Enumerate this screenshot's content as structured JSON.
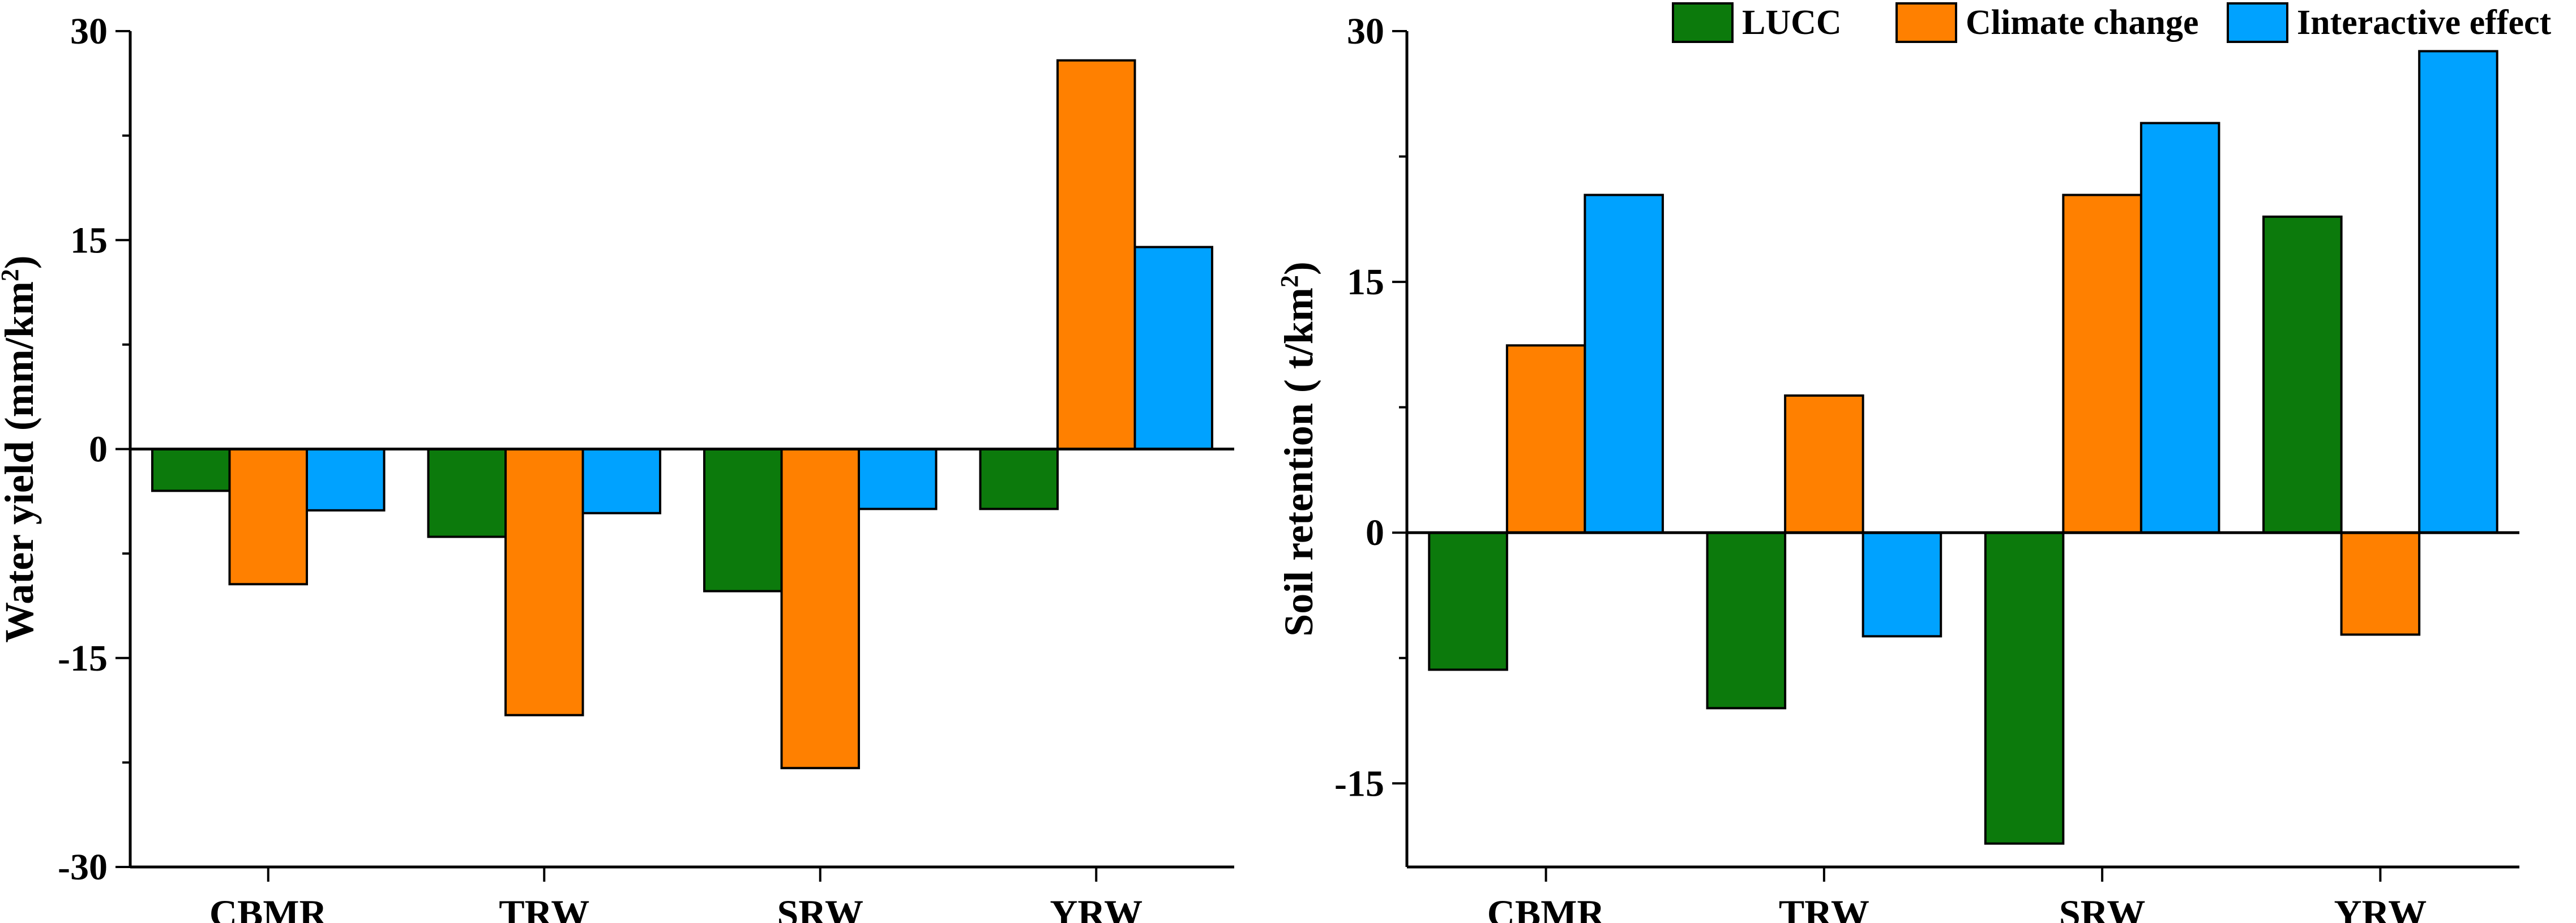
{
  "colors": {
    "LUCC": "#0c7a0c",
    "Climate change": "#ff8000",
    "Interactive effect": "#00a2ff"
  },
  "chart_data": [
    {
      "type": "bar",
      "categories": [
        "CBMR",
        "TRW",
        "SRW",
        "YRW"
      ],
      "series": [
        {
          "name": "LUCC",
          "values": [
            -3.0,
            -6.3,
            -10.2,
            -4.3
          ]
        },
        {
          "name": "Climate change",
          "values": [
            -9.7,
            -19.1,
            -22.9,
            27.9
          ]
        },
        {
          "name": "Interactive effect",
          "values": [
            -4.4,
            -4.6,
            -4.3,
            14.5
          ]
        }
      ],
      "ylabel": "Water yield (mm/km",
      "ylabel_sup": "2",
      "ylabel_end": ")",
      "ylim": [
        -30,
        30
      ],
      "yticks": [
        -30,
        -15,
        0,
        15,
        30
      ],
      "ytick_labels": [
        "-30",
        "-15",
        "0",
        "15",
        "30"
      ],
      "legend": false
    },
    {
      "type": "bar",
      "categories": [
        "CBMR",
        "TRW",
        "SRW",
        "YRW"
      ],
      "series": [
        {
          "name": "LUCC",
          "values": [
            -8.2,
            -10.5,
            -18.6,
            18.9
          ]
        },
        {
          "name": "Climate change",
          "values": [
            11.2,
            8.2,
            20.2,
            -6.1
          ]
        },
        {
          "name": "Interactive effect",
          "values": [
            20.2,
            -6.2,
            24.5,
            28.8
          ]
        }
      ],
      "ylabel": "Soil retention ( t/km",
      "ylabel_sup": "2",
      "ylabel_end": ")",
      "ylim": [
        -20,
        30
      ],
      "yticks": [
        -15,
        0,
        15,
        30
      ],
      "ytick_labels": [
        "-15",
        "0",
        "15",
        "30"
      ],
      "legend": true,
      "legend_position": "top"
    }
  ]
}
